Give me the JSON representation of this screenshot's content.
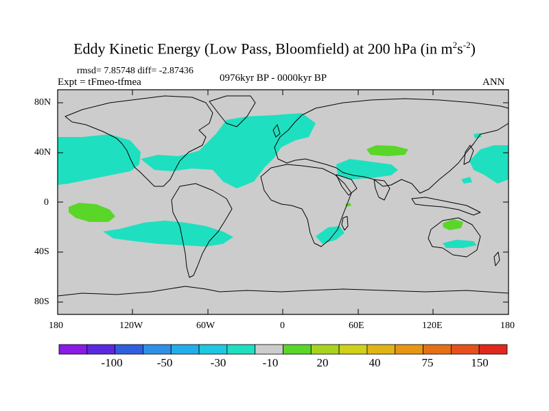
{
  "header": {
    "title_main": "Eddy Kinetic Energy (Low Pass, Bloomfield) at 200 hPa (in m",
    "title_sup1": "2",
    "title_mid": "s",
    "title_sup2": "-2",
    "title_end": ")",
    "stats": "rmsd= 7.85748 diff= -2.87436",
    "experiment": "Expt = tFmeo-tfmea",
    "period": "0976kyr BP - 0000kyr BP",
    "season": "ANN"
  },
  "axes": {
    "lat_labels": [
      "80N",
      "40N",
      "0",
      "40S",
      "80S"
    ],
    "lon_labels": [
      "180",
      "120W",
      "60W",
      "0",
      "60E",
      "120E",
      "180"
    ]
  },
  "colorbar": {
    "colors": [
      "#8a1ae6",
      "#5a28e0",
      "#2f5fe0",
      "#2d8fe6",
      "#22aee8",
      "#1ec8e0",
      "#1ee0c0",
      "#cccccc",
      "#5ad628",
      "#a8d41e",
      "#cfd01a",
      "#e0b414",
      "#e69614",
      "#e67014",
      "#e6501e",
      "#e0281e"
    ],
    "labels": [
      "-100",
      "-50",
      "-30",
      "-10",
      "20",
      "40",
      "75",
      "150"
    ]
  },
  "colors": {
    "land_ocean_bg": "#cccccc",
    "negative_fill": "#1ee0c0",
    "positive_fill": "#5ad628",
    "coast": "#000000"
  }
}
